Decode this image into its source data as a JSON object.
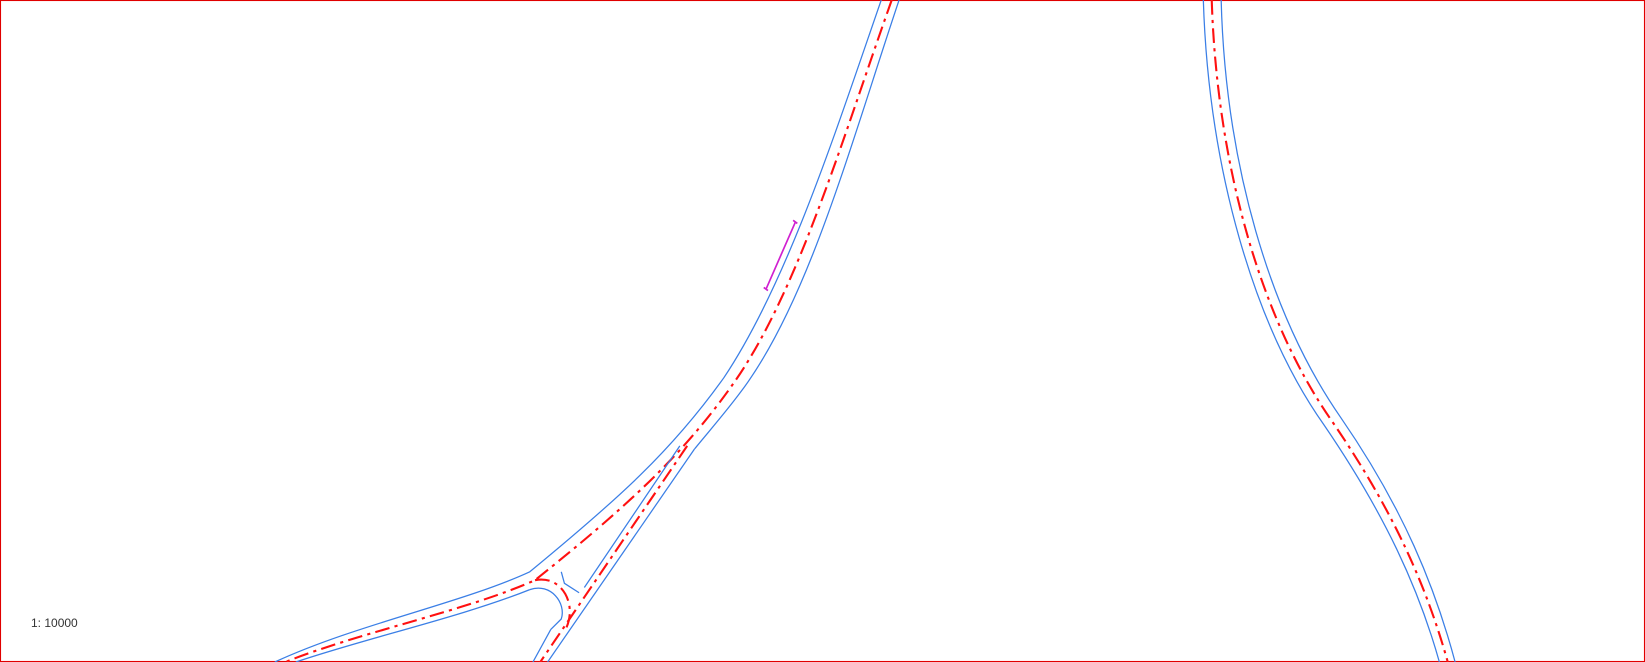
{
  "scale_label": "1: 10000"
}
